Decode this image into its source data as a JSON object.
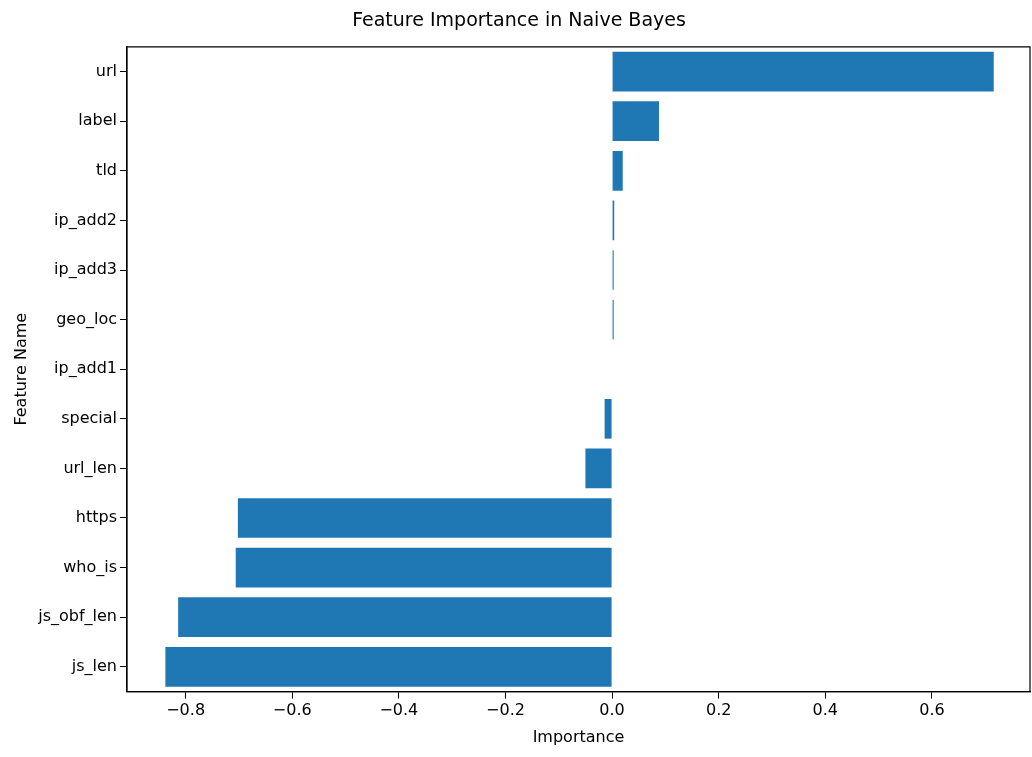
{
  "chart_data": {
    "type": "bar",
    "orientation": "horizontal",
    "title": "Feature Importance in Naive Bayes",
    "xlabel": "Importance",
    "ylabel": "Feature Name",
    "categories": [
      "url",
      "label",
      "tld",
      "ip_add2",
      "ip_add3",
      "geo_loc",
      "ip_add1",
      "special",
      "url_len",
      "https",
      "who_is",
      "js_obf_len",
      "js_len"
    ],
    "values": [
      0.716,
      0.088,
      0.02,
      0.004,
      0.003,
      0.003,
      0.0,
      -0.014,
      -0.05,
      -0.702,
      -0.706,
      -0.814,
      -0.838
    ],
    "color": "#1f77b4",
    "xlim": [
      -0.91,
      0.784
    ],
    "xticks": [
      {
        "value": -0.8,
        "label": "−0.8"
      },
      {
        "value": -0.6,
        "label": "−0.6"
      },
      {
        "value": -0.4,
        "label": "−0.4"
      },
      {
        "value": -0.2,
        "label": "−0.2"
      },
      {
        "value": 0,
        "label": "0.0"
      },
      {
        "value": 0.2,
        "label": "0.2"
      },
      {
        "value": 0.4,
        "label": "0.4"
      },
      {
        "value": 0.6,
        "label": "0.6"
      }
    ],
    "grid": false,
    "legend": false
  }
}
